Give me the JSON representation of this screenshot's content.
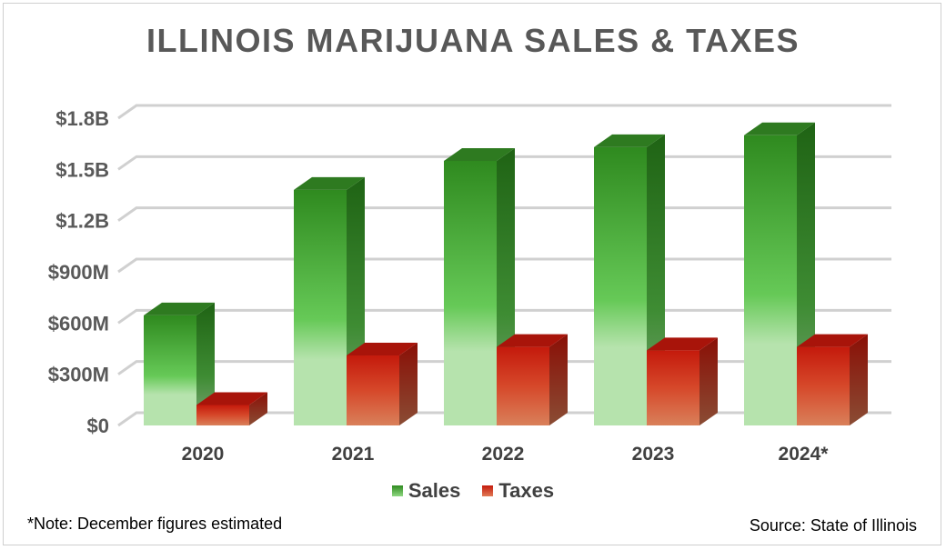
{
  "title": "ILLINOIS MARIJUANA SALES & TAXES",
  "note": "*Note: December figures estimated",
  "source": "Source: State of Illinois",
  "colors": {
    "sales_top": "#2f8a1f",
    "sales_bottom": "#b6e3ad",
    "taxes_top": "#c41a0c",
    "taxes_bottom": "#d9805a",
    "gridline": "#d0d0d0"
  },
  "chart_data": {
    "type": "bar",
    "title": "ILLINOIS MARIJUANA SALES & TAXES",
    "categories": [
      "2020",
      "2021",
      "2022",
      "2023",
      "2024*"
    ],
    "series": [
      {
        "name": "Sales",
        "values": [
          645000000,
          1380000000,
          1550000000,
          1630000000,
          1700000000
        ]
      },
      {
        "name": "Taxes",
        "values": [
          120000000,
          410000000,
          460000000,
          440000000,
          460000000
        ]
      }
    ],
    "ylim": [
      0,
      1800000000
    ],
    "yticks": [
      0,
      300000000,
      600000000,
      900000000,
      1200000000,
      1500000000,
      1800000000
    ],
    "ytick_labels": [
      "$0",
      "$300M",
      "$600M",
      "$900M",
      "$1.2B",
      "$1.5B",
      "$1.8B"
    ],
    "grid": true,
    "legend_position": "bottom"
  }
}
